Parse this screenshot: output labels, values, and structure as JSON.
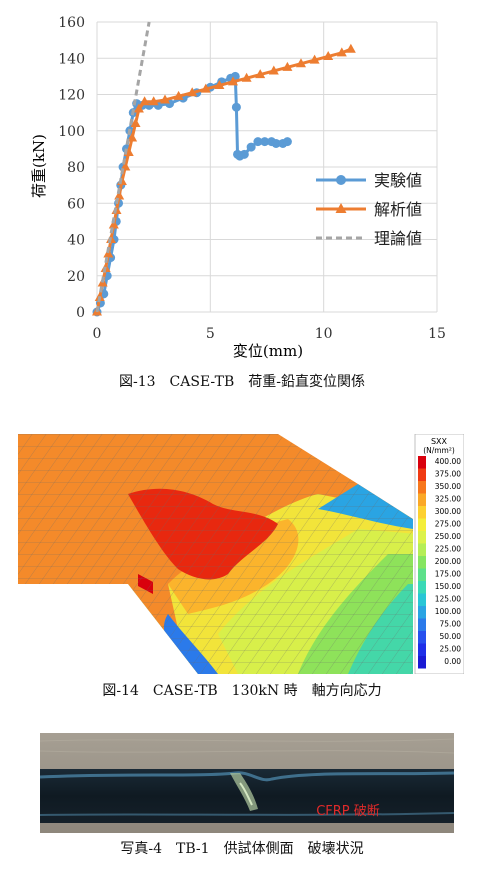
{
  "figure13": {
    "caption": "図-13　CASE-TB　荷重-鉛直変位関係",
    "chart_data": {
      "type": "line",
      "xlabel": "変位(mm)",
      "ylabel": "荷重(kN)",
      "xlim": [
        0,
        15
      ],
      "ylim": [
        0,
        160
      ],
      "xticks": [
        0,
        5,
        10,
        15
      ],
      "yticks": [
        0,
        20,
        40,
        60,
        80,
        100,
        120,
        140,
        160
      ],
      "grid": true,
      "legend_position": "right",
      "series": [
        {
          "name": "実験値",
          "color": "#5b9bd5",
          "style": "circle-markers",
          "x": [
            0,
            0.15,
            0.3,
            0.45,
            0.6,
            0.75,
            0.85,
            0.95,
            1.05,
            1.15,
            1.3,
            1.45,
            1.6,
            1.75,
            2.0,
            2.3,
            2.7,
            3.2,
            3.8,
            4.4,
            5.0,
            5.5,
            5.9,
            6.1,
            6.15,
            6.2,
            6.3,
            6.5,
            6.8,
            7.1,
            7.4,
            7.7,
            7.9,
            8.2,
            8.4
          ],
          "y": [
            0,
            5,
            10,
            20,
            30,
            40,
            50,
            60,
            70,
            80,
            90,
            100,
            110,
            115,
            114,
            114,
            114,
            115,
            118,
            121,
            124,
            127,
            129,
            130,
            113,
            87,
            86,
            87,
            91,
            94,
            94,
            94,
            93,
            93,
            94
          ]
        },
        {
          "name": "解析値",
          "color": "#ed7d31",
          "style": "triangle-markers",
          "x": [
            0,
            0.12,
            0.25,
            0.38,
            0.5,
            0.62,
            0.74,
            0.86,
            0.98,
            1.1,
            1.25,
            1.4,
            1.55,
            1.7,
            1.85,
            2.1,
            2.5,
            3.0,
            3.6,
            4.2,
            4.8,
            5.4,
            6.0,
            6.6,
            7.2,
            7.8,
            8.4,
            9.0,
            9.6,
            10.2,
            10.8,
            11.2
          ],
          "y": [
            0,
            8,
            16,
            24,
            32,
            40,
            48,
            56,
            64,
            72,
            80,
            88,
            96,
            104,
            112,
            116,
            116,
            117,
            119,
            121,
            123,
            125,
            127,
            129,
            131,
            133,
            135,
            137,
            139,
            141,
            143,
            145
          ]
        },
        {
          "name": "理論値",
          "color": "#a5a5a5",
          "style": "dashed",
          "x": [
            0,
            2.3
          ],
          "y": [
            0,
            160
          ]
        }
      ]
    }
  },
  "figure14": {
    "caption": "図-14　CASE-TB　130kN 時　軸方向応力",
    "legend_title": "SXX",
    "legend_unit": "(N/mm²)",
    "levels": [
      "400.00",
      "375.00",
      "350.00",
      "325.00",
      "300.00",
      "275.00",
      "250.00",
      "225.00",
      "200.00",
      "175.00",
      "150.00",
      "125.00",
      "100.00",
      "75.00",
      "50.00",
      "25.00",
      "0.00"
    ],
    "level_colors": [
      "#d9000d",
      "#f03a12",
      "#f7771c",
      "#fba827",
      "#fdd030",
      "#f4ee3a",
      "#dcf24b",
      "#b5ee56",
      "#86e560",
      "#5de08a",
      "#3ad9b6",
      "#29c6d6",
      "#2aa4e3",
      "#2b7aea",
      "#2750ee",
      "#1f2fe8",
      "#1a1ad4"
    ]
  },
  "photo4": {
    "caption": "写真-4　TB-1　供試体側面　破壊状況",
    "label": "CFRP 破断",
    "label_color": "#e02a2a"
  }
}
